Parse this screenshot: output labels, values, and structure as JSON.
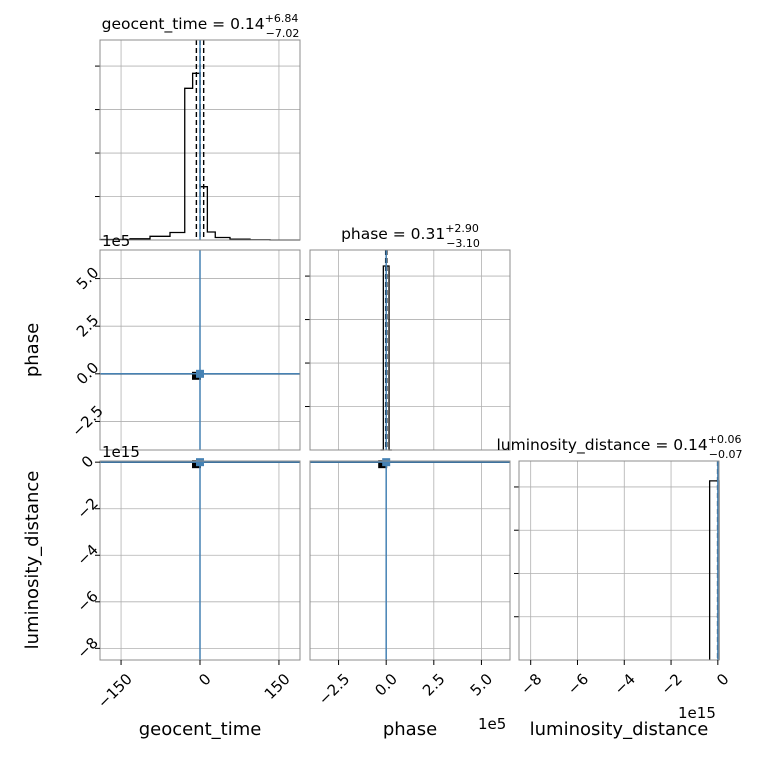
{
  "chart_data": {
    "type": "corner",
    "colors": {
      "hist": "#000000",
      "truth": "#4682b4",
      "frame": "#8c8c8c",
      "grid": "#b0b0b0"
    },
    "parameters": [
      {
        "name": "geocent_time",
        "label": "geocent_time",
        "title_main": "geocent_time = 0.14",
        "title_plus": "+6.84",
        "title_minus": "−7.02",
        "range": [
          -190,
          190
        ],
        "ticks": [
          -150,
          0,
          150
        ],
        "tick_labels": [
          "−150",
          "0",
          "150"
        ],
        "offset_text": "",
        "truth": 0,
        "quantiles": [
          -6.88,
          0.14,
          6.98
        ],
        "hist_edges": [
          -190,
          -133,
          -95,
          -57,
          -29,
          -14,
          0,
          14,
          29,
          57,
          95,
          133,
          190
        ],
        "hist_values": [
          0.3,
          0.7,
          2.2,
          4.5,
          91,
          100,
          32,
          4.8,
          1.5,
          0.5,
          0.1,
          0
        ],
        "hist_ylim": [
          0,
          120
        ]
      },
      {
        "name": "phase",
        "label": "phase",
        "title_main": "phase = 0.31",
        "title_plus": "+2.90",
        "title_minus": "−3.10",
        "range": [
          -4.0,
          6.5
        ],
        "ticks": [
          -2.5,
          0.0,
          2.5,
          5.0
        ],
        "tick_labels": [
          "−2.5",
          "0.0",
          "2.5",
          "5.0"
        ],
        "offset_text": "1e5",
        "truth": 0.0,
        "quantiles": [
          -0.028,
          0.0,
          0.032
        ],
        "hist_edges": [
          -0.3,
          -0.15,
          0.0,
          0.15,
          0.3
        ],
        "hist_values": [
          0,
          92,
          92,
          0
        ],
        "hist_ylim": [
          0,
          100
        ]
      },
      {
        "name": "luminosity_distance",
        "label": "luminosity_distance",
        "title_main": "luminosity_distance = 0.14",
        "title_plus": "+0.06",
        "title_minus": "−0.07",
        "range": [
          -8.5,
          0.05
        ],
        "ticks": [
          -8,
          -6,
          -4,
          -2,
          0
        ],
        "tick_labels": [
          "−8",
          "−6",
          "−4",
          "−2",
          "0"
        ],
        "offset_text": "1e15",
        "truth": 0,
        "quantiles": [
          -0.01,
          0.0
        ],
        "hist_edges": [
          -0.35,
          -0.05,
          0.05
        ],
        "hist_values": [
          90,
          90
        ],
        "hist_ylim": [
          0,
          100
        ]
      }
    ],
    "grid": true
  }
}
